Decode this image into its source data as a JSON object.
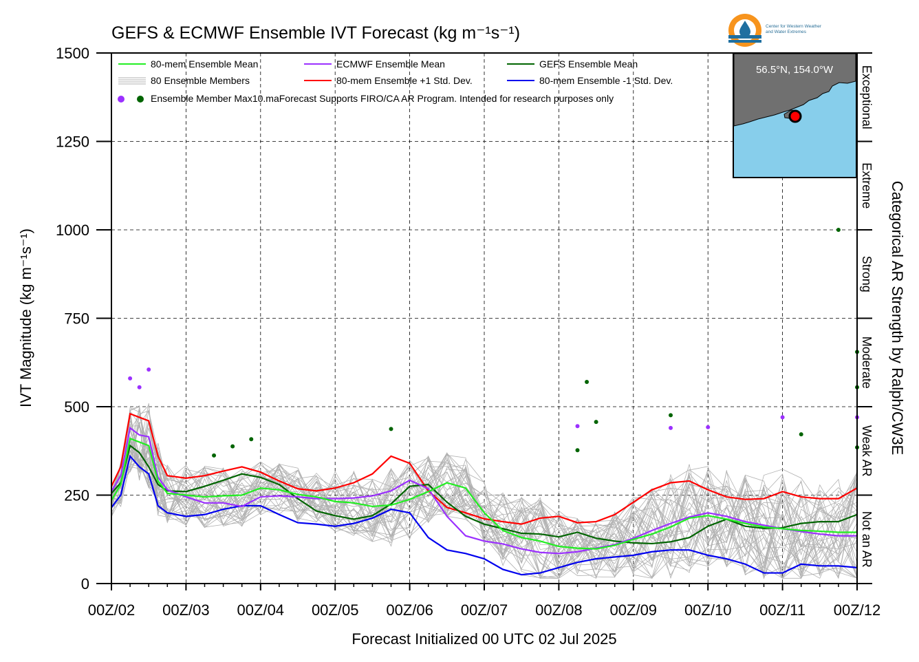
{
  "chart_data": {
    "type": "line",
    "title": "GEFS & ECMWF Ensemble IVT Forecast (kg m⁻¹s⁻¹)",
    "xlabel": "Forecast Initialized 00 UTC 02 Jul 2025",
    "ylabel": "IVT Magnitude (kg m⁻¹s⁻¹)",
    "right_label": "Categorical AR Strength by Ralph/CW3E",
    "xlim": [
      0,
      10
    ],
    "ylim": [
      0,
      1500
    ],
    "x_ticks": [
      0,
      1,
      2,
      3,
      4,
      5,
      6,
      7,
      8,
      9,
      10
    ],
    "x_tick_labels": [
      "00Z/02",
      "00Z/03",
      "00Z/04",
      "00Z/05",
      "00Z/06",
      "00Z/07",
      "00Z/08",
      "00Z/09",
      "00Z/10",
      "00Z/11",
      "00Z/12"
    ],
    "y_ticks": [
      0,
      250,
      500,
      750,
      1000,
      1250,
      1500
    ],
    "y_tick_labels": [
      "0",
      "250",
      "500",
      "750",
      "1000",
      "1250",
      "1500"
    ],
    "grid": true,
    "categories": [
      {
        "label": "Not an AR",
        "from": 0,
        "to": 250
      },
      {
        "label": "Weak AR",
        "from": 250,
        "to": 500
      },
      {
        "label": "Moderate",
        "from": 500,
        "to": 750
      },
      {
        "label": "Strong",
        "from": 750,
        "to": 1000
      },
      {
        "label": "Extreme",
        "from": 1000,
        "to": 1250
      },
      {
        "label": "Exceptional",
        "from": 1250,
        "to": 1500
      }
    ],
    "series": [
      {
        "name": "80-mem Ensemble Mean",
        "color": "#22ee22",
        "x": [
          0,
          0.125,
          0.25,
          0.375,
          0.5,
          0.625,
          0.75,
          1,
          1.25,
          1.5,
          1.75,
          2,
          2.25,
          2.5,
          2.75,
          3,
          3.25,
          3.5,
          3.75,
          4,
          4.25,
          4.5,
          4.75,
          5,
          5.25,
          5.5,
          5.75,
          6,
          6.25,
          6.5,
          6.75,
          7,
          7.25,
          7.5,
          7.75,
          8,
          8.25,
          8.5,
          8.75,
          9,
          9.25,
          9.5,
          9.75,
          10
        ],
        "y": [
          235,
          280,
          410,
          400,
          390,
          290,
          255,
          250,
          245,
          248,
          250,
          270,
          265,
          252,
          245,
          232,
          228,
          218,
          222,
          238,
          260,
          285,
          270,
          200,
          150,
          130,
          120,
          105,
          100,
          98,
          108,
          125,
          140,
          160,
          185,
          192,
          182,
          170,
          160,
          155,
          150,
          148,
          145,
          145
        ]
      },
      {
        "name": "ECMWF Ensemble Mean",
        "color": "#9b30ff",
        "x": [
          0,
          0.125,
          0.25,
          0.375,
          0.5,
          0.625,
          0.75,
          1,
          1.25,
          1.5,
          1.75,
          2,
          2.25,
          2.5,
          2.75,
          3,
          3.25,
          3.5,
          3.75,
          4,
          4.25,
          4.5,
          4.75,
          5,
          5.25,
          5.5,
          5.75,
          6,
          6.25,
          6.5,
          6.75,
          7,
          7.25,
          7.5,
          7.75,
          8,
          8.25,
          8.5,
          8.75,
          9,
          9.25,
          9.5,
          9.75,
          10
        ],
        "y": [
          260,
          305,
          440,
          420,
          415,
          300,
          265,
          245,
          228,
          228,
          218,
          245,
          248,
          245,
          240,
          240,
          242,
          248,
          262,
          292,
          268,
          190,
          135,
          120,
          112,
          98,
          88,
          85,
          90,
          100,
          110,
          128,
          150,
          170,
          188,
          200,
          190,
          175,
          165,
          155,
          147,
          140,
          135,
          135
        ]
      },
      {
        "name": "GEFS Ensemble Mean",
        "color": "#006400",
        "x": [
          0,
          0.125,
          0.25,
          0.375,
          0.5,
          0.625,
          0.75,
          1,
          1.25,
          1.5,
          1.75,
          2,
          2.25,
          2.5,
          2.75,
          3,
          3.25,
          3.5,
          3.75,
          4,
          4.25,
          4.5,
          4.75,
          5,
          5.25,
          5.5,
          5.75,
          6,
          6.25,
          6.5,
          6.75,
          7,
          7.25,
          7.5,
          7.75,
          8,
          8.25,
          8.5,
          8.75,
          9,
          9.25,
          9.5,
          9.75,
          10
        ],
        "y": [
          255,
          285,
          390,
          370,
          330,
          280,
          262,
          260,
          275,
          292,
          310,
          300,
          280,
          240,
          205,
          192,
          182,
          192,
          225,
          275,
          280,
          230,
          190,
          168,
          155,
          142,
          140,
          132,
          145,
          128,
          120,
          115,
          113,
          118,
          130,
          162,
          182,
          162,
          156,
          158,
          170,
          175,
          175,
          195
        ]
      },
      {
        "name": "80-mem Ensemble +1 Std. Dev.",
        "color": "#ff0000",
        "x": [
          0,
          0.125,
          0.25,
          0.375,
          0.5,
          0.625,
          0.75,
          1,
          1.25,
          1.5,
          1.75,
          2,
          2.25,
          2.5,
          2.75,
          3,
          3.25,
          3.5,
          3.75,
          4,
          4.25,
          4.5,
          4.75,
          5,
          5.25,
          5.5,
          5.75,
          6,
          6.25,
          6.5,
          6.75,
          7,
          7.25,
          7.5,
          7.75,
          8,
          8.25,
          8.5,
          8.75,
          9,
          9.25,
          9.5,
          9.75,
          10
        ],
        "y": [
          275,
          330,
          480,
          470,
          460,
          360,
          305,
          298,
          305,
          318,
          330,
          315,
          290,
          268,
          262,
          270,
          285,
          310,
          360,
          340,
          262,
          215,
          200,
          183,
          175,
          168,
          185,
          190,
          172,
          175,
          195,
          230,
          265,
          285,
          290,
          265,
          245,
          238,
          240,
          260,
          245,
          240,
          240,
          270
        ]
      },
      {
        "name": "80-mem Ensemble -1 Std. Dev.",
        "color": "#0000ee",
        "x": [
          0,
          0.125,
          0.25,
          0.375,
          0.5,
          0.625,
          0.75,
          1,
          1.25,
          1.5,
          1.75,
          2,
          2.25,
          2.5,
          2.75,
          3,
          3.25,
          3.5,
          3.75,
          4,
          4.25,
          4.5,
          4.75,
          5,
          5.25,
          5.5,
          5.75,
          6,
          6.25,
          6.5,
          6.75,
          7,
          7.25,
          7.5,
          7.75,
          8,
          8.25,
          8.5,
          8.75,
          9,
          9.25,
          9.5,
          9.75,
          10
        ],
        "y": [
          215,
          250,
          360,
          330,
          310,
          220,
          200,
          190,
          195,
          210,
          220,
          220,
          195,
          172,
          168,
          162,
          170,
          185,
          210,
          200,
          130,
          95,
          85,
          70,
          40,
          25,
          30,
          45,
          60,
          70,
          75,
          80,
          90,
          95,
          95,
          80,
          70,
          55,
          30,
          30,
          55,
          50,
          50,
          45
        ]
      }
    ],
    "max_points": {
      "ECMWF": [
        [
          0.25,
          580
        ],
        [
          0.375,
          555
        ],
        [
          0.5,
          605
        ],
        [
          6.25,
          445
        ],
        [
          7.5,
          440
        ],
        [
          8.0,
          442
        ],
        [
          9.0,
          470
        ],
        [
          10.0,
          470
        ]
      ],
      "GEFS": [
        [
          1.375,
          362
        ],
        [
          1.625,
          388
        ],
        [
          1.875,
          408
        ],
        [
          3.75,
          437
        ],
        [
          6.25,
          377
        ],
        [
          6.375,
          570
        ],
        [
          6.5,
          457
        ],
        [
          7.5,
          476
        ],
        [
          9.75,
          1000
        ],
        [
          10.0,
          655
        ],
        [
          10.0,
          555
        ],
        [
          9.25,
          422
        ],
        [
          10.0,
          385
        ]
      ]
    },
    "legend": [
      "80-mem Ensemble Mean",
      "ECMWF Ensemble Mean",
      "GEFS Ensemble Mean",
      "80 Ensemble Members",
      "80-mem Ensemble +1 Std. Dev.",
      "80-mem Ensemble -1 Std. Dev.",
      "Ensemble Member Max"
    ],
    "legend_position": "top-left",
    "note": "10.maForecast Supports FIRO/CA AR Program. Intended for research purposes only",
    "inset_map_label": "56.5°N, 154.0°W",
    "logo_text": [
      "Center for Western Weather",
      "and Water Extremes"
    ]
  },
  "colors": {
    "members": "#b0b0b0",
    "grid": "#000000",
    "ocean": "#87ceeb",
    "land": "#707070",
    "marker": "#ff0000"
  }
}
